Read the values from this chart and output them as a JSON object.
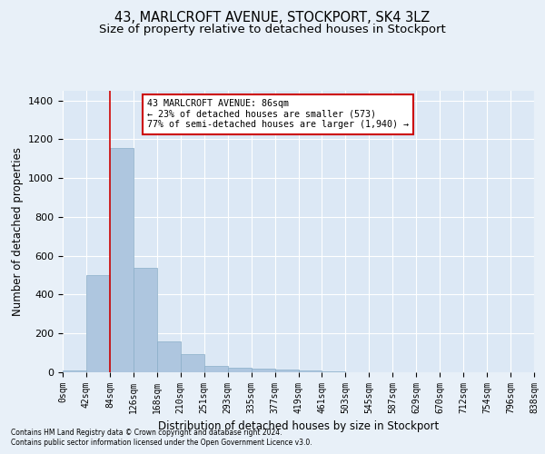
{
  "title": "43, MARLCROFT AVENUE, STOCKPORT, SK4 3LZ",
  "subtitle": "Size of property relative to detached houses in Stockport",
  "xlabel": "Distribution of detached houses by size in Stockport",
  "ylabel": "Number of detached properties",
  "footnote1": "Contains HM Land Registry data © Crown copyright and database right 2024.",
  "footnote2": "Contains public sector information licensed under the Open Government Licence v3.0.",
  "bar_values": [
    10,
    500,
    1155,
    540,
    160,
    95,
    35,
    25,
    20,
    13,
    8,
    3,
    2,
    1,
    1,
    0,
    0,
    0,
    0,
    0
  ],
  "bar_labels": [
    "0sqm",
    "42sqm",
    "84sqm",
    "126sqm",
    "168sqm",
    "210sqm",
    "251sqm",
    "293sqm",
    "335sqm",
    "377sqm",
    "419sqm",
    "461sqm",
    "503sqm",
    "545sqm",
    "587sqm",
    "629sqm",
    "670sqm",
    "712sqm",
    "754sqm",
    "796sqm",
    "838sqm"
  ],
  "bar_color": "#aec6df",
  "bar_edge_color": "#8aaec8",
  "vline_x": 2,
  "vline_color": "#cc0000",
  "annotation_text_line1": "43 MARLCROFT AVENUE: 86sqm",
  "annotation_text_line2": "← 23% of detached houses are smaller (573)",
  "annotation_text_line3": "77% of semi-detached houses are larger (1,940) →",
  "annotation_box_color": "#ffffff",
  "annotation_box_edge": "#cc0000",
  "ylim": [
    0,
    1450
  ],
  "yticks": [
    0,
    200,
    400,
    600,
    800,
    1000,
    1200,
    1400
  ],
  "bg_color": "#e8f0f8",
  "axes_bg_color": "#dce8f5",
  "grid_color": "#ffffff",
  "title_fontsize": 10.5,
  "subtitle_fontsize": 9.5,
  "tick_fontsize": 7,
  "ylabel_fontsize": 8.5,
  "xlabel_fontsize": 8.5,
  "footnote_fontsize": 5.5
}
